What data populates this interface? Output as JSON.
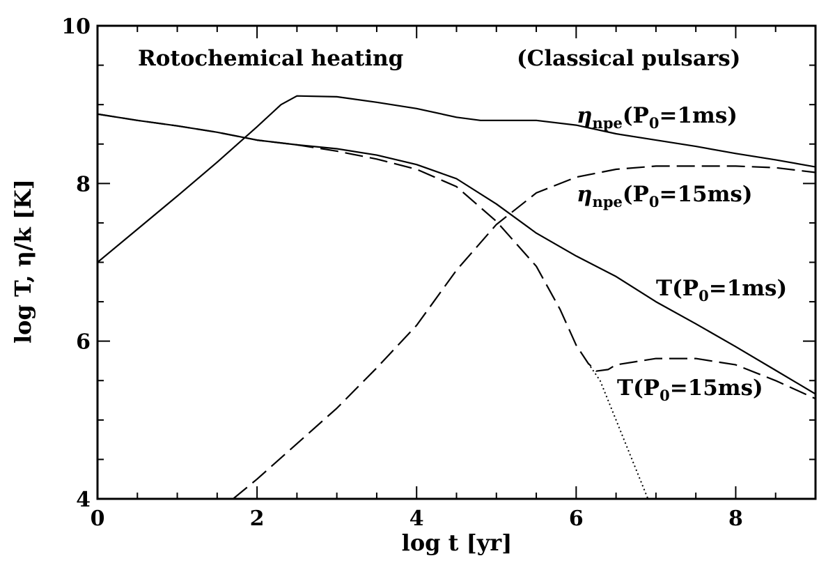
{
  "chart_data": {
    "type": "line",
    "title_left": "Rotochemical heating",
    "title_right": "(Classical pulsars)",
    "xlabel": "log t [yr]",
    "ylabel": "log T, η/k [K]",
    "xlim": [
      0,
      9
    ],
    "ylim": [
      4,
      10
    ],
    "x_ticks": [
      "0",
      "2",
      "4",
      "6",
      "8"
    ],
    "y_ticks": [
      "4",
      "6",
      "8",
      "10"
    ],
    "annotations": [
      {
        "id": "eta1",
        "main": "η",
        "sub": "npe",
        "rest": "(P",
        "sub2": "0",
        "tail": "=1ms)"
      },
      {
        "id": "eta15",
        "main": "η",
        "sub": "npe",
        "rest": "(P",
        "sub2": "0",
        "tail": "=15ms)"
      },
      {
        "id": "T1",
        "main": "T",
        "sub": "",
        "rest": "(P",
        "sub2": "0",
        "tail": "=1ms)"
      },
      {
        "id": "T15",
        "main": "T",
        "sub": "",
        "rest": "(P",
        "sub2": "0",
        "tail": "=15ms)"
      }
    ],
    "series": [
      {
        "style": "solid",
        "points": [
          [
            0,
            7.0
          ],
          [
            0.5,
            7.42
          ],
          [
            1.0,
            7.84
          ],
          [
            1.5,
            8.27
          ],
          [
            2.0,
            8.72
          ],
          [
            2.3,
            9.0
          ],
          [
            2.5,
            9.11
          ],
          [
            3.0,
            9.1
          ],
          [
            3.5,
            9.03
          ],
          [
            4.0,
            8.95
          ],
          [
            4.5,
            8.84
          ],
          [
            4.8,
            8.8
          ],
          [
            5.0,
            8.8
          ],
          [
            5.5,
            8.8
          ],
          [
            6.0,
            8.74
          ],
          [
            6.5,
            8.63
          ],
          [
            7.0,
            8.55
          ],
          [
            7.5,
            8.47
          ],
          [
            8.0,
            8.38
          ],
          [
            8.5,
            8.3
          ],
          [
            9.0,
            8.21
          ]
        ]
      },
      {
        "style": "dashed",
        "points": [
          [
            1.7,
            4.0
          ],
          [
            2.0,
            4.25
          ],
          [
            2.5,
            4.7
          ],
          [
            3.0,
            5.15
          ],
          [
            3.5,
            5.66
          ],
          [
            4.0,
            6.2
          ],
          [
            4.5,
            6.9
          ],
          [
            5.0,
            7.48
          ],
          [
            5.5,
            7.88
          ],
          [
            6.0,
            8.08
          ],
          [
            6.5,
            8.18
          ],
          [
            7.0,
            8.22
          ],
          [
            8.0,
            8.22
          ],
          [
            8.5,
            8.2
          ],
          [
            9.0,
            8.14
          ]
        ]
      },
      {
        "style": "solid",
        "points": [
          [
            0,
            8.88
          ],
          [
            0.5,
            8.8
          ],
          [
            1.0,
            8.73
          ],
          [
            1.5,
            8.65
          ],
          [
            2.0,
            8.55
          ],
          [
            2.5,
            8.49
          ],
          [
            3.0,
            8.44
          ],
          [
            3.5,
            8.36
          ],
          [
            4.0,
            8.24
          ],
          [
            4.5,
            8.06
          ],
          [
            5.0,
            7.74
          ],
          [
            5.5,
            7.37
          ],
          [
            6.0,
            7.08
          ],
          [
            6.5,
            6.82
          ],
          [
            7.0,
            6.5
          ],
          [
            7.5,
            6.22
          ],
          [
            8.0,
            5.93
          ],
          [
            8.5,
            5.63
          ],
          [
            9.0,
            5.33
          ]
        ]
      },
      {
        "style": "dashed",
        "points": [
          [
            0,
            8.88
          ],
          [
            0.5,
            8.8
          ],
          [
            1.0,
            8.73
          ],
          [
            1.5,
            8.65
          ],
          [
            2.0,
            8.55
          ],
          [
            2.5,
            8.49
          ],
          [
            3.0,
            8.41
          ],
          [
            3.5,
            8.31
          ],
          [
            4.0,
            8.18
          ],
          [
            4.5,
            7.96
          ],
          [
            5.0,
            7.52
          ],
          [
            5.5,
            6.95
          ],
          [
            5.8,
            6.4
          ],
          [
            6.0,
            5.95
          ],
          [
            6.15,
            5.72
          ],
          [
            6.25,
            5.62
          ],
          [
            6.4,
            5.64
          ],
          [
            6.5,
            5.7
          ],
          [
            7.0,
            5.78
          ],
          [
            7.5,
            5.78
          ],
          [
            8.0,
            5.7
          ],
          [
            8.5,
            5.5
          ],
          [
            9.0,
            5.27
          ]
        ]
      },
      {
        "style": "dotted",
        "points": [
          [
            6.15,
            5.72
          ],
          [
            6.3,
            5.5
          ],
          [
            6.5,
            5.0
          ],
          [
            6.7,
            4.5
          ],
          [
            6.9,
            4.0
          ]
        ]
      }
    ]
  }
}
